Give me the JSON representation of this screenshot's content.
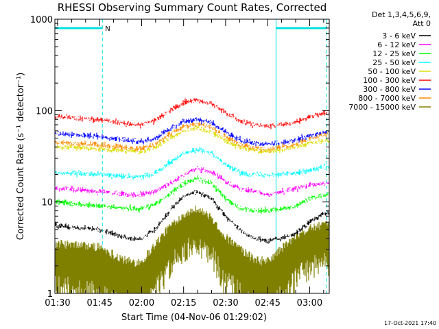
{
  "chart_data": {
    "type": "line",
    "title": "RHESSI Observing Summary Count Rates, Corrected",
    "xlabel": "Start Time (04-Nov-06 01:29:02)",
    "ylabel": "Corrected Count Rate (s⁻¹ detector⁻¹)",
    "footer": "17-Oct-2021 17:40",
    "x_scale": "time",
    "xlim": [
      "01:29:02",
      "03:07:00"
    ],
    "x_ticks": [
      "01:30",
      "01:45",
      "02:00",
      "02:15",
      "02:30",
      "02:45",
      "03:00"
    ],
    "y_scale": "log",
    "ylim": [
      1,
      1000
    ],
    "y_ticks": [
      "1",
      "10",
      "100",
      "1000"
    ],
    "legend": {
      "position": "top-right",
      "header": [
        "Det 1,3,4,5,6,9,",
        "Att 0"
      ]
    },
    "annotations": [
      {
        "label": "N",
        "x_start": "01:29:02",
        "x_end": "01:46:00",
        "kind": "night"
      },
      {
        "label": "",
        "x_start": "02:48:00",
        "x_end": "03:06:00",
        "kind": "night"
      }
    ],
    "vlines_solid": [
      "01:29:02",
      "02:48:00"
    ],
    "vlines_dashed": [
      "01:46:00",
      "03:06:00"
    ],
    "series": [
      {
        "name": "3 - 6 keV",
        "color": "#000000",
        "x": [
          "01:30",
          "01:45",
          "01:55",
          "02:00",
          "02:05",
          "02:10",
          "02:15",
          "02:20",
          "02:25",
          "02:30",
          "02:35",
          "02:40",
          "02:45",
          "02:50",
          "02:55",
          "03:00",
          "03:05"
        ],
        "values": [
          5.5,
          5.0,
          4.0,
          4.0,
          5.0,
          8.0,
          11.5,
          13.0,
          11.0,
          7.0,
          5.0,
          4.0,
          3.8,
          4.0,
          4.5,
          6.0,
          7.5
        ]
      },
      {
        "name": "6 - 12 keV",
        "color": "#ff00ff",
        "x": [
          "01:30",
          "01:45",
          "01:55",
          "02:00",
          "02:05",
          "02:10",
          "02:15",
          "02:20",
          "02:25",
          "02:30",
          "02:35",
          "02:40",
          "02:45",
          "02:50",
          "02:55",
          "03:00",
          "03:05"
        ],
        "values": [
          14,
          13,
          12,
          12,
          13,
          16,
          20,
          23,
          21,
          17,
          14,
          13,
          12,
          13,
          14,
          15,
          16
        ]
      },
      {
        "name": "12 - 25 keV",
        "color": "#00ff00",
        "x": [
          "01:30",
          "01:45",
          "01:55",
          "02:00",
          "02:05",
          "02:10",
          "02:15",
          "02:20",
          "02:25",
          "02:30",
          "02:35",
          "02:40",
          "02:45",
          "02:50",
          "02:55",
          "03:00",
          "03:05"
        ],
        "values": [
          10,
          9,
          8.5,
          8.5,
          9.5,
          12,
          16,
          18,
          16,
          11,
          8.5,
          8,
          8,
          8.5,
          9,
          11,
          12
        ]
      },
      {
        "name": "25 - 50 keV",
        "color": "#00ffff",
        "x": [
          "01:30",
          "01:45",
          "01:55",
          "02:00",
          "02:05",
          "02:10",
          "02:15",
          "02:20",
          "02:25",
          "02:30",
          "02:35",
          "02:40",
          "02:45",
          "02:50",
          "02:55",
          "03:00",
          "03:05"
        ],
        "values": [
          21,
          20,
          19,
          19,
          21,
          27,
          34,
          37,
          34,
          26,
          21,
          20,
          20,
          20,
          21,
          22,
          24
        ]
      },
      {
        "name": "50 - 100 keV",
        "color": "#dddd00",
        "x": [
          "01:30",
          "01:45",
          "01:55",
          "02:00",
          "02:05",
          "02:10",
          "02:15",
          "02:20",
          "02:25",
          "02:30",
          "02:35",
          "02:40",
          "02:45",
          "02:50",
          "02:55",
          "03:00",
          "03:05"
        ],
        "values": [
          40,
          38,
          36,
          36,
          40,
          50,
          60,
          64,
          59,
          47,
          40,
          37,
          36,
          37,
          40,
          44,
          46
        ]
      },
      {
        "name": "100 - 300 keV",
        "color": "#ff0000",
        "x": [
          "01:30",
          "01:45",
          "01:55",
          "02:00",
          "02:05",
          "02:10",
          "02:15",
          "02:20",
          "02:25",
          "02:30",
          "02:35",
          "02:40",
          "02:45",
          "02:50",
          "02:55",
          "03:00",
          "03:05"
        ],
        "values": [
          85,
          80,
          72,
          70,
          78,
          100,
          122,
          130,
          120,
          95,
          78,
          70,
          68,
          70,
          75,
          85,
          95
        ]
      },
      {
        "name": "300 - 800 keV",
        "color": "#0000ff",
        "x": [
          "01:30",
          "01:45",
          "01:55",
          "02:00",
          "02:05",
          "02:10",
          "02:15",
          "02:20",
          "02:25",
          "02:30",
          "02:35",
          "02:40",
          "02:45",
          "02:50",
          "02:55",
          "03:00",
          "03:05"
        ],
        "values": [
          56,
          52,
          47,
          46,
          50,
          63,
          76,
          80,
          74,
          58,
          48,
          44,
          43,
          44,
          47,
          53,
          58
        ]
      },
      {
        "name": "800 - 7000 keV",
        "color": "#ff8c00",
        "x": [
          "01:30",
          "01:45",
          "01:55",
          "02:00",
          "02:05",
          "02:10",
          "02:15",
          "02:20",
          "02:25",
          "02:30",
          "02:35",
          "02:40",
          "02:45",
          "02:50",
          "02:55",
          "03:00",
          "03:05"
        ],
        "values": [
          45,
          42,
          39,
          39,
          43,
          55,
          67,
          72,
          66,
          52,
          43,
          39,
          38,
          40,
          43,
          49,
          54
        ]
      },
      {
        "name": "7000 - 15000 keV",
        "color": "#808000",
        "x": [
          "01:30",
          "01:45",
          "01:55",
          "02:00",
          "02:05",
          "02:10",
          "02:15",
          "02:20",
          "02:25",
          "02:30",
          "02:35",
          "02:40",
          "02:45",
          "02:50",
          "02:55",
          "03:00",
          "03:05"
        ],
        "values": [
          2.5,
          2.3,
          1.5,
          1.5,
          2.5,
          4.0,
          5.5,
          6.5,
          5.0,
          3.0,
          2.2,
          1.6,
          1.5,
          2.2,
          3.0,
          3.8,
          4.2
        ]
      }
    ]
  }
}
